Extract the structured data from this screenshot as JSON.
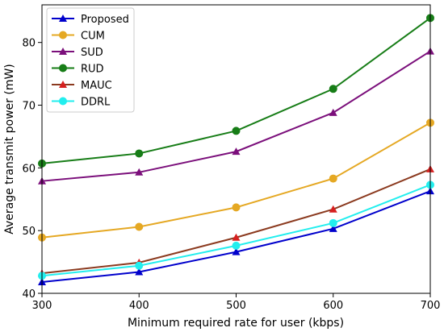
{
  "chart_data": {
    "type": "line",
    "title": "",
    "xlabel": "Minimum required rate for user (kbps)",
    "ylabel": "Average transmit power (mW)",
    "x": [
      300,
      400,
      500,
      600,
      700
    ],
    "xlim": [
      300,
      700
    ],
    "ylim": [
      40,
      86
    ],
    "xticks": [
      300,
      400,
      500,
      600,
      700
    ],
    "yticks": [
      40,
      50,
      60,
      70,
      80
    ],
    "grid": false,
    "legend_position": "top-left",
    "series": [
      {
        "name": "Proposed",
        "color": "#0000cc",
        "marker": "triangle",
        "values": [
          41.8,
          43.4,
          46.6,
          50.3,
          56.3
        ]
      },
      {
        "name": "CUM",
        "color": "#e5a823",
        "marker": "circle",
        "values": [
          48.9,
          50.6,
          53.7,
          58.3,
          67.2
        ]
      },
      {
        "name": "SUD",
        "color": "#7b0f7b",
        "marker": "triangle",
        "values": [
          57.9,
          59.3,
          62.6,
          68.8,
          78.6
        ]
      },
      {
        "name": "RUD",
        "color": "#177d17",
        "marker": "circle",
        "values": [
          60.7,
          62.3,
          65.9,
          72.6,
          83.9
        ]
      },
      {
        "name": "MAUC",
        "color": "#d62020",
        "line_color": "#8b3a1f",
        "marker": "triangle",
        "values": [
          43.2,
          44.9,
          48.9,
          53.4,
          59.8
        ]
      },
      {
        "name": "DDRL",
        "color": "#22eeee",
        "marker": "circle",
        "values": [
          42.8,
          44.4,
          47.6,
          51.2,
          57.3
        ]
      }
    ]
  }
}
